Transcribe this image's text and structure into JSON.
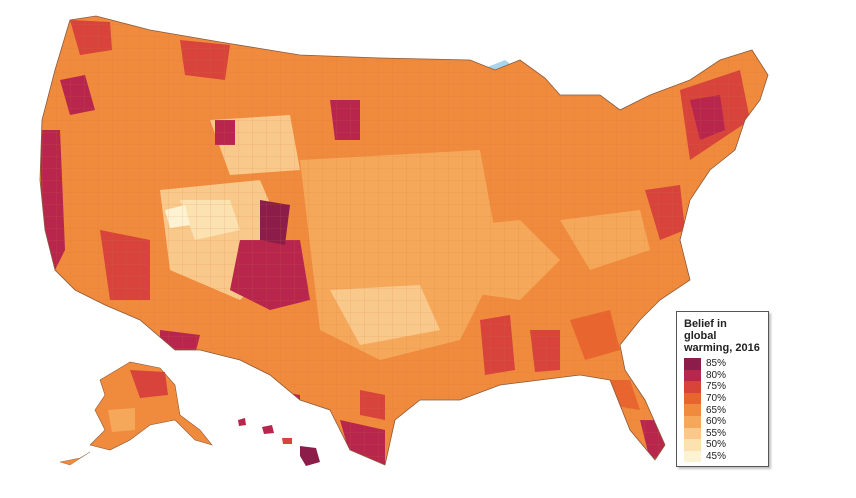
{
  "legend": {
    "title": "Belief in global warming, 2016",
    "items": [
      {
        "label": "85%",
        "color": "#8c1d4a"
      },
      {
        "label": "80%",
        "color": "#b8254d"
      },
      {
        "label": "75%",
        "color": "#d8433b"
      },
      {
        "label": "70%",
        "color": "#e9652f"
      },
      {
        "label": "65%",
        "color": "#f08a3c"
      },
      {
        "label": "60%",
        "color": "#f5a85a"
      },
      {
        "label": "55%",
        "color": "#f9c98b"
      },
      {
        "label": "50%",
        "color": "#fbe2b0"
      },
      {
        "label": "45%",
        "color": "#fdf3d3"
      }
    ]
  },
  "colors": {
    "water": "#a9d4ea",
    "border": "#8a5a3a"
  }
}
